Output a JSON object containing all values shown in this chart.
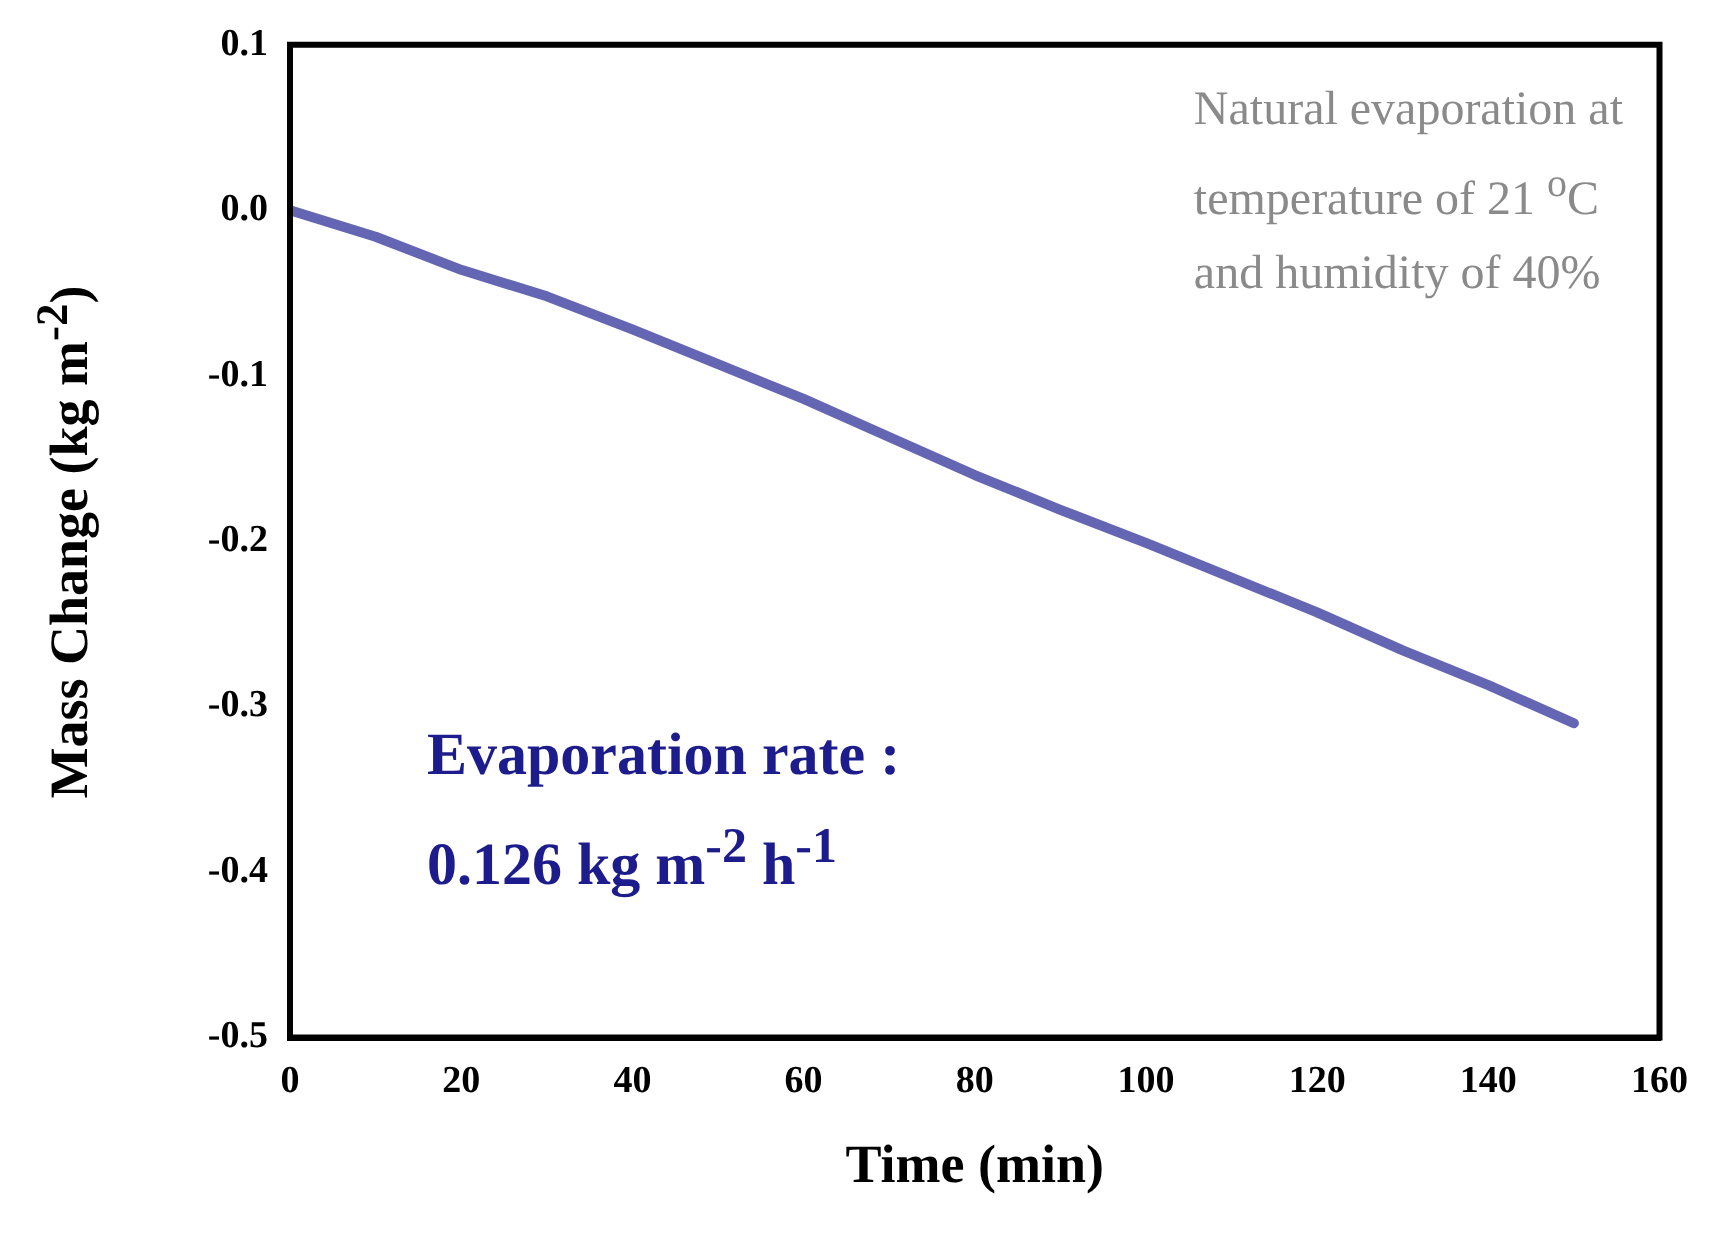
{
  "chart_data": {
    "type": "line",
    "xlabel": "Time (min)",
    "ylabel": "Mass Change (kg m$^{-2}$)",
    "x": [
      0,
      10,
      20,
      30,
      40,
      50,
      60,
      70,
      80,
      90,
      100,
      110,
      120,
      130,
      140,
      150
    ],
    "series": [
      {
        "color": "#6466b4",
        "values": [
          0,
          -0.016,
          -0.036,
          -0.052,
          -0.072,
          -0.093,
          -0.114,
          -0.137,
          -0.16,
          -0.181,
          -0.201,
          -0.222,
          -0.243,
          -0.266,
          -0.287,
          -0.31
        ]
      }
    ],
    "xlim": [
      0,
      160
    ],
    "xticks": [
      0,
      20,
      40,
      60,
      80,
      100,
      120,
      140,
      160
    ],
    "ylim": [
      -0.5,
      0.1
    ],
    "yticks": [
      -0.5,
      -0.4,
      -0.3,
      -0.2,
      -0.1,
      {
        "value": 0,
        "label": "0.0"
      },
      0.1
    ],
    "grid": false,
    "legend": false,
    "marker": "none",
    "line_style": "solid",
    "annotations": [
      "Natural evaporation at temperature of 21 $^{o}$C and humidity of 40%",
      "Evaporation rate : 0.126 kg m$^{-2}$ h$^{-1}$"
    ]
  }
}
